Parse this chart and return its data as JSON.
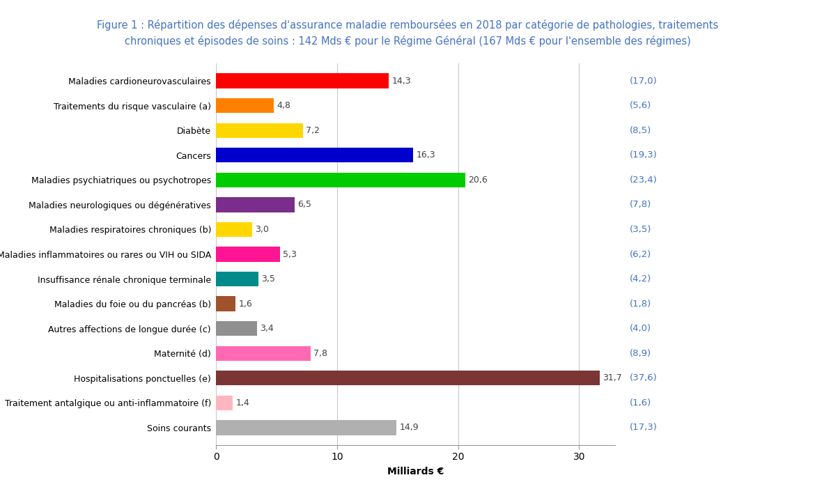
{
  "title_line1": "Figure 1 : Répartition des dépenses d'assurance maladie remboursées en 2018 par catégorie de pathologies, traitements",
  "title_line2": "chroniques et épisodes de soins : 142 Mds € pour le Régime Général (167 Mds € pour l'ensemble des régimes)",
  "categories": [
    "Maladies cardioneurovasculaires",
    "Traitements du risque vasculaire (a)",
    "Diabète",
    "Cancers",
    "Maladies psychiatriques ou psychotropes",
    "Maladies neurologiques ou dégénératives",
    "Maladies respiratoires chroniques (b)",
    "Maladies inflammatoires ou rares ou VIH ou SIDA",
    "Insuffisance rénale chronique terminale",
    "Maladies du foie ou du pancréas (b)",
    "Autres affections de longue durée (c)",
    "Maternité (d)",
    "Hospitalisations ponctuelles (e)",
    "Traitement antalgique ou anti-inflammatoire (f)",
    "Soins courants"
  ],
  "values": [
    14.3,
    4.8,
    7.2,
    16.3,
    20.6,
    6.5,
    3.0,
    5.3,
    3.5,
    1.6,
    3.4,
    7.8,
    31.7,
    1.4,
    14.9
  ],
  "bar_colors": [
    "#FF0000",
    "#FF8000",
    "#FFD700",
    "#0000CC",
    "#00CC00",
    "#7B2D8B",
    "#FFD700",
    "#FF1493",
    "#008B8B",
    "#A0522D",
    "#909090",
    "#FF69B4",
    "#7B3535",
    "#FFB6C1",
    "#B0B0B0"
  ],
  "secondary_labels": [
    "(17,0)",
    "(5,6)",
    "(8,5)",
    "(19,3)",
    "(23,4)",
    "(7,8)",
    "(3,5)",
    "(6,2)",
    "(4,2)",
    "(1,8)",
    "(4,0)",
    "(8,9)",
    "(37,6)",
    "(1,6)",
    "(17,3)"
  ],
  "bar_labels": [
    "14,3",
    "4,8",
    "7,2",
    "16,3",
    "20,6",
    "6,5",
    "3,0",
    "5,3",
    "3,5",
    "1,6",
    "3,4",
    "7,8",
    "31,7",
    "1,4",
    "14,9"
  ],
  "xlabel": "Milliards €",
  "xlim": [
    0,
    33
  ],
  "title_color": "#4472C4",
  "bar_value_color": "#404040",
  "secondary_label_color": "#4472C4",
  "background_color": "#FFFFFF",
  "grid_color": "#C8C8C8",
  "title_fontsize": 10.5,
  "xlabel_fontsize": 10,
  "bar_label_fontsize": 9,
  "category_fontsize": 9,
  "secondary_fontsize": 9.5
}
